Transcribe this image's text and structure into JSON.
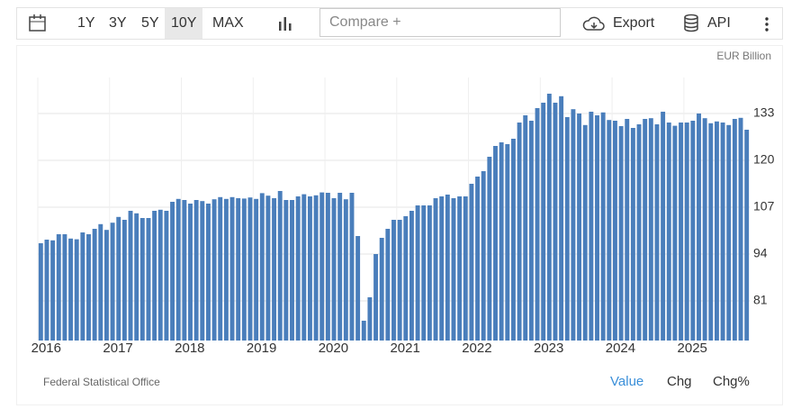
{
  "toolbar": {
    "ranges": [
      "1Y",
      "3Y",
      "5Y",
      "10Y",
      "MAX"
    ],
    "active_range": 3,
    "compare": "Compare +",
    "export": "Export",
    "api": "API"
  },
  "tabs": {
    "items": [
      "Value",
      "Chg",
      "Chg%"
    ],
    "active": 0
  },
  "source": "Federal Statistical Office",
  "chart_data": {
    "type": "bar",
    "unit": "EUR Billion",
    "color": "#4a7ebb",
    "grid": true,
    "categories": [
      "2016",
      null,
      null,
      null,
      null,
      null,
      null,
      null,
      null,
      null,
      null,
      null,
      "2017",
      null,
      null,
      null,
      null,
      null,
      null,
      null,
      null,
      null,
      null,
      null,
      "2018",
      null,
      null,
      null,
      null,
      null,
      null,
      null,
      null,
      null,
      null,
      null,
      "2019",
      null,
      null,
      null,
      null,
      null,
      null,
      null,
      null,
      null,
      null,
      null,
      "2020",
      null,
      null,
      null,
      null,
      null,
      null,
      null,
      null,
      null,
      null,
      null,
      "2021",
      null,
      null,
      null,
      null,
      null,
      null,
      null,
      null,
      null,
      null,
      null,
      "2022",
      null,
      null,
      null,
      null,
      null,
      null,
      null,
      null,
      null,
      null,
      null,
      "2023",
      null,
      null,
      null,
      null,
      null,
      null,
      null,
      null,
      null,
      null,
      null,
      "2024",
      null,
      null,
      null,
      null,
      null,
      null,
      null,
      null,
      null,
      null,
      null,
      "2025",
      null,
      null,
      null,
      null,
      null,
      null,
      null,
      null,
      null,
      null
    ],
    "values": [
      97,
      98,
      97.8,
      99.5,
      99.5,
      98.3,
      98.1,
      100,
      99.5,
      101,
      102.3,
      100.7,
      102.7,
      104.3,
      103.5,
      106,
      105.3,
      104,
      104,
      106,
      106.3,
      106,
      108.5,
      109.3,
      109,
      108,
      109,
      108.7,
      108,
      109.2,
      109.8,
      109.3,
      109.8,
      109.5,
      109.4,
      109.7,
      109.3,
      110.9,
      110.2,
      109.5,
      111.5,
      109,
      109,
      110,
      110.6,
      110,
      110.3,
      111.1,
      111,
      109.5,
      111,
      109.2,
      111,
      99,
      75.5,
      82,
      94,
      98.5,
      101,
      103.5,
      103.5,
      104.5,
      106,
      107.5,
      107.5,
      107.5,
      109.5,
      110,
      110.5,
      109.5,
      110,
      110,
      113.5,
      115.5,
      117,
      121,
      124,
      125,
      124.5,
      126,
      130.5,
      132.5,
      131,
      134.5,
      136,
      138.5,
      136,
      137.8,
      132,
      134.2,
      133,
      129.8,
      133.5,
      132.5,
      133.3,
      131.2,
      131,
      129.5,
      131.5,
      129,
      130,
      131.5,
      131.7,
      130,
      133.5,
      130.5,
      129.6,
      130.5,
      130.5,
      131,
      133,
      131.7,
      130.3,
      130.8,
      130.5,
      129.8,
      131.5,
      131.8,
      128.5
    ],
    "ylim": [
      70,
      143
    ],
    "yticks": [
      81,
      94,
      107,
      120,
      133
    ]
  }
}
